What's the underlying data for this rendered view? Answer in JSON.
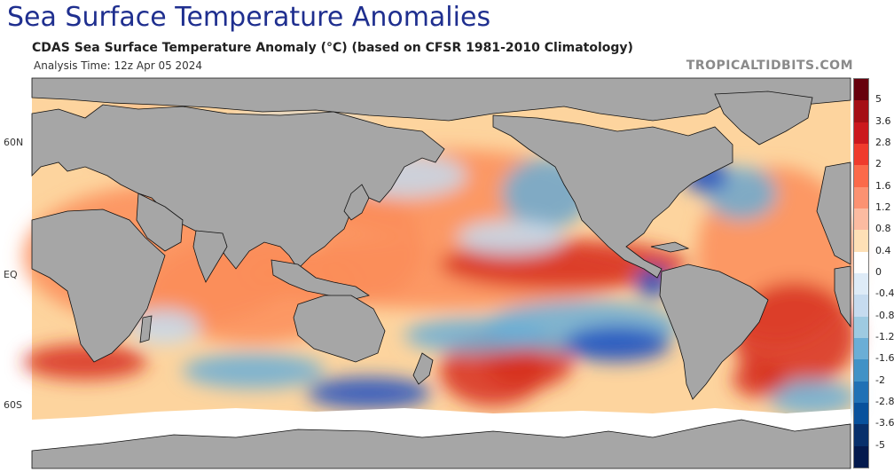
{
  "header": {
    "page_title": "Sea Surface Temperature Anomalies",
    "chart_title": "CDAS Sea Surface Temperature Anomaly (°C) (based on CFSR 1981-2010 Climatology)",
    "analysis_time": "Analysis Time: 12z Apr 05 2024",
    "credit": "TROPICALTIDBITS.COM"
  },
  "map": {
    "latitude_labels": [
      "60N",
      "EQ",
      "60S"
    ],
    "colors": {
      "land": "#a6a6a6",
      "ice": "#ffffff",
      "coast": "#111111",
      "warm_strong": "#d7301f",
      "warm": "#fc8d59",
      "warm_light": "#fdd49e",
      "neutral": "#ffffff",
      "cool_light": "#c6dbef",
      "cool": "#6baed6",
      "cool_strong": "#1f4fbf"
    }
  },
  "colorbar": {
    "tick_labels": [
      "5",
      "3.6",
      "2.8",
      "2",
      "1.6",
      "1.2",
      "0.8",
      "0.4",
      "0",
      "-0.4",
      "-0.8",
      "-1.2",
      "-1.6",
      "-2",
      "-2.8",
      "-3.6",
      "-5"
    ],
    "colors": [
      "#67000d",
      "#a50f15",
      "#cb181d",
      "#ef3b2c",
      "#fb6a4a",
      "#fc9272",
      "#fcbba1",
      "#fee0b6",
      "#ffffff",
      "#deebf7",
      "#c6dbef",
      "#9ecae1",
      "#6baed6",
      "#4292c6",
      "#2171b5",
      "#08519c",
      "#08306b",
      "#041a4d"
    ]
  }
}
